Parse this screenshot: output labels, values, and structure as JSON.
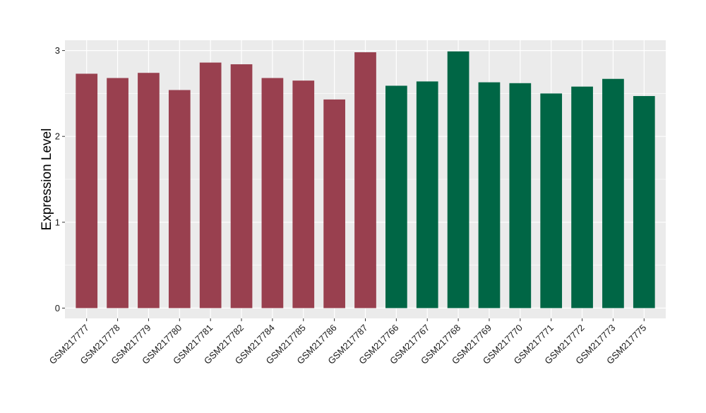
{
  "chart_data": {
    "type": "bar",
    "title": "",
    "xlabel": "",
    "ylabel": "Expression Level",
    "ylim": [
      -0.12,
      3.12
    ],
    "yticks": [
      0,
      1,
      2,
      3
    ],
    "grid": true,
    "legend": "none",
    "categories": [
      "GSM217777",
      "GSM217778",
      "GSM217779",
      "GSM217780",
      "GSM217781",
      "GSM217782",
      "GSM217784",
      "GSM217785",
      "GSM217786",
      "GSM217787",
      "GSM217766",
      "GSM217767",
      "GSM217768",
      "GSM217769",
      "GSM217770",
      "GSM217771",
      "GSM217772",
      "GSM217773",
      "GSM217775"
    ],
    "values": [
      2.73,
      2.68,
      2.74,
      2.54,
      2.86,
      2.84,
      2.68,
      2.65,
      2.43,
      2.98,
      2.59,
      2.64,
      2.99,
      2.63,
      2.62,
      2.5,
      2.58,
      2.67,
      2.47
    ],
    "groups": [
      0,
      0,
      0,
      0,
      0,
      0,
      0,
      0,
      0,
      0,
      1,
      1,
      1,
      1,
      1,
      1,
      1,
      1,
      1
    ],
    "group_colors": [
      "#99404f",
      "#006645"
    ],
    "panel_background": "#ebebeb",
    "grid_color": "#ffffff"
  }
}
